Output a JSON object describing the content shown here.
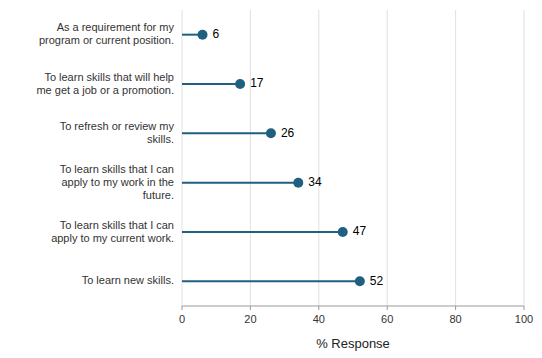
{
  "chart_data": {
    "type": "lollipop",
    "orientation": "horizontal",
    "categories": [
      "As a requirement for my\nprogram or current position.",
      "To learn skills that will help\nme get a job or a promotion.",
      "To refresh or review my\nskills.",
      "To learn skills that I can\napply to my work in the\nfuture.",
      "To learn skills that I can\napply to my current work.",
      "To learn new skills."
    ],
    "values": [
      6,
      17,
      26,
      34,
      47,
      52
    ],
    "color": "#1f6080",
    "xlabel": "% Response",
    "xlim": [
      0,
      100
    ],
    "xticks": [
      0,
      20,
      40,
      60,
      80,
      100
    ],
    "grid": true,
    "data_labels": true
  }
}
